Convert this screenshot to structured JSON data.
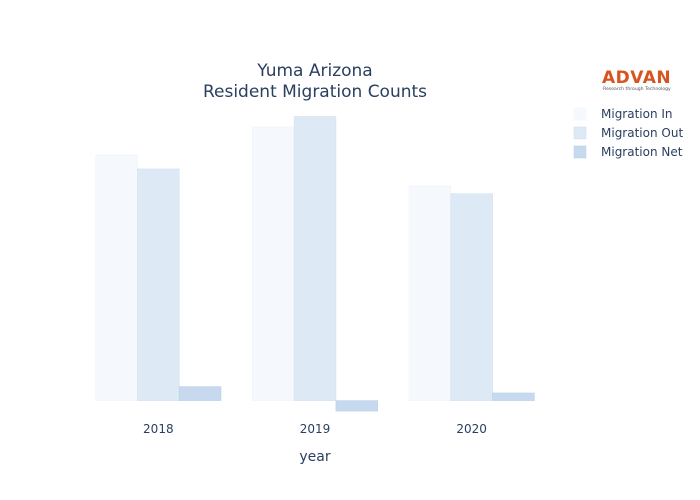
{
  "logo": {
    "name": "ADVAN",
    "tagline": "Research through Technology",
    "color": "#d9531e"
  },
  "chart_data": {
    "type": "bar",
    "title": [
      "Yuma Arizona",
      "Resident Migration Counts"
    ],
    "xlabel": "year",
    "ylabel": "",
    "categories": [
      "2018",
      "2019",
      "2020"
    ],
    "series": [
      {
        "name": "Migration In",
        "values": [
          11930,
          13290,
          10420
        ],
        "color": "#f5f9fd",
        "stroke": "#eef3fa"
      },
      {
        "name": "Migration Out",
        "values": [
          11250,
          13800,
          10050
        ],
        "color": "#dde9f5",
        "stroke": "#d3e2f1"
      },
      {
        "name": "Migration Net",
        "values": [
          680,
          -510,
          370
        ],
        "color": "#c6d9ee",
        "stroke": "#bcd2ea"
      }
    ],
    "ylim": [
      -700,
      14600
    ],
    "grid": false,
    "legend_position": "top-right"
  }
}
